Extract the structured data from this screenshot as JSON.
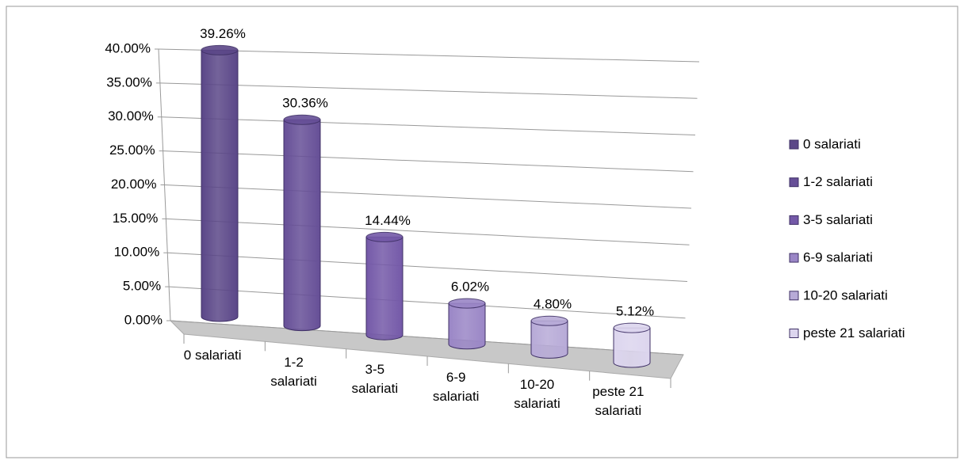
{
  "chart_data": {
    "type": "bar3d",
    "categories": [
      "0 salariati",
      "1-2 salariati",
      "3-5 salariati",
      "6-9 salariati",
      "10-20 salariati",
      "peste 21 salariati"
    ],
    "values": [
      39.26,
      30.36,
      14.44,
      6.02,
      4.8,
      5.12
    ],
    "value_labels": [
      "39.26%",
      "30.36%",
      "14.44%",
      "6.02%",
      "4.80%",
      "5.12%"
    ],
    "colors": [
      "#5b4788",
      "#664f97",
      "#7459a8",
      "#9a86c6",
      "#b7aad7",
      "#dcd5ee"
    ],
    "ylim": [
      0,
      40
    ],
    "yticks": [
      {
        "value": 0,
        "label": "0.00%"
      },
      {
        "value": 5,
        "label": "5.00%"
      },
      {
        "value": 10,
        "label": "10.00%"
      },
      {
        "value": 15,
        "label": "15.00%"
      },
      {
        "value": 20,
        "label": "20.00%"
      },
      {
        "value": 25,
        "label": "25.00%"
      },
      {
        "value": 30,
        "label": "30.00%"
      },
      {
        "value": 35,
        "label": "35.00%"
      },
      {
        "value": 40,
        "label": "40.00%"
      }
    ],
    "grid": true,
    "legend": "right"
  }
}
